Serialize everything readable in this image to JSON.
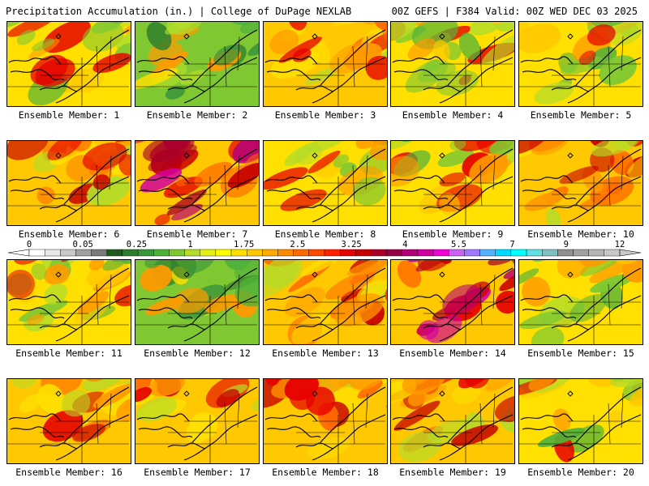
{
  "header": {
    "title": "Precipitation Accumulation (in.) | College of DuPage NEXLAB",
    "run_info": "00Z GEFS | F384 Valid: 00Z WED DEC 03 2025"
  },
  "members": [
    {
      "label": "Ensemble Member: 1",
      "scheme": "mixed"
    },
    {
      "label": "Ensemble Member: 2",
      "scheme": "wet-green"
    },
    {
      "label": "Ensemble Member: 3",
      "scheme": "warm"
    },
    {
      "label": "Ensemble Member: 4",
      "scheme": "mixed"
    },
    {
      "label": "Ensemble Member: 5",
      "scheme": "mixed"
    },
    {
      "label": "Ensemble Member: 6",
      "scheme": "warm"
    },
    {
      "label": "Ensemble Member: 7",
      "scheme": "wet-magenta"
    },
    {
      "label": "Ensemble Member: 8",
      "scheme": "mixed"
    },
    {
      "label": "Ensemble Member: 9",
      "scheme": "mixed"
    },
    {
      "label": "Ensemble Member: 10",
      "scheme": "warm"
    },
    {
      "label": "Ensemble Member: 11",
      "scheme": "mixed"
    },
    {
      "label": "Ensemble Member: 12",
      "scheme": "wet-green"
    },
    {
      "label": "Ensemble Member: 13",
      "scheme": "warm"
    },
    {
      "label": "Ensemble Member: 14",
      "scheme": "wet-magenta"
    },
    {
      "label": "Ensemble Member: 15",
      "scheme": "mixed"
    },
    {
      "label": "Ensemble Member: 16",
      "scheme": "warm"
    },
    {
      "label": "Ensemble Member: 17",
      "scheme": "warm"
    },
    {
      "label": "Ensemble Member: 18",
      "scheme": "warm"
    },
    {
      "label": "Ensemble Member: 19",
      "scheme": "warm"
    },
    {
      "label": "Ensemble Member: 20",
      "scheme": "mixed"
    }
  ],
  "colorbar": {
    "labels": [
      "0",
      "0.05",
      "0.25",
      "1",
      "1.75",
      "2.5",
      "3.25",
      "4",
      "5.5",
      "7",
      "9",
      "12"
    ],
    "colors": [
      "#ffffff",
      "#e6e6e6",
      "#c8c8c8",
      "#a0a0a0",
      "#7a7a7a",
      "#1e5a1e",
      "#2d7d2d",
      "#3c963c",
      "#4fb23a",
      "#7fc832",
      "#b4dc28",
      "#e6f014",
      "#ffff00",
      "#ffe000",
      "#ffc800",
      "#ffaa00",
      "#ff8c00",
      "#ff6a00",
      "#ff4800",
      "#ff2000",
      "#e60000",
      "#c80000",
      "#aa0028",
      "#960046",
      "#b40078",
      "#d200a0",
      "#f000d2",
      "#c864f0",
      "#a078ff",
      "#50b4ff",
      "#00dcff",
      "#00ffff",
      "#60e0e0",
      "#80c0c0",
      "#909090",
      "#a0a0a0",
      "#b4b4b4",
      "#c8c8c8"
    ]
  }
}
